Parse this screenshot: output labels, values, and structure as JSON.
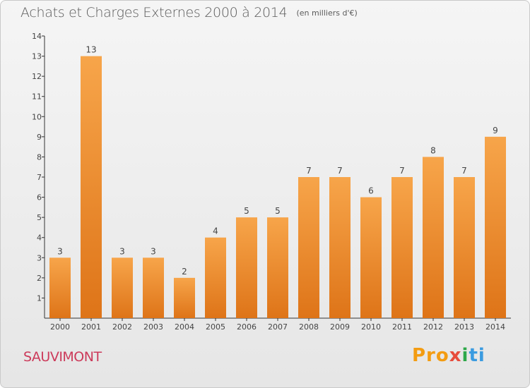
{
  "header": {
    "title": "Achats et Charges Externes 2000 à 2014",
    "unit_note": "(en milliers d'€)"
  },
  "footer": {
    "commune": "SAUVIMONT",
    "logo_parts": [
      "Pro",
      "x",
      "i",
      "ti"
    ]
  },
  "colors": {
    "bar_top": "#f7a54a",
    "bar_bottom": "#de7418",
    "title": "#5a5a5a",
    "commune": "#cc3a5a"
  },
  "chart_data": {
    "type": "bar",
    "title": "Achats et Charges Externes 2000 à 2014",
    "subtitle": "(en milliers d'€)",
    "xlabel": "",
    "ylabel": "",
    "categories": [
      "2000",
      "2001",
      "2002",
      "2003",
      "2004",
      "2005",
      "2006",
      "2007",
      "2008",
      "2009",
      "2010",
      "2011",
      "2012",
      "2013",
      "2014"
    ],
    "values": [
      3,
      13,
      3,
      3,
      2,
      4,
      5,
      5,
      7,
      7,
      6,
      7,
      8,
      7,
      9
    ],
    "data_labels": [
      "3",
      "13",
      "3",
      "3",
      "2",
      "4",
      "5",
      "5",
      "7",
      "7",
      "6",
      "7",
      "8",
      "7",
      "9"
    ],
    "y_ticks": [
      "1",
      "2",
      "3",
      "4",
      "5",
      "6",
      "7",
      "8",
      "9",
      "10",
      "11",
      "12",
      "13",
      "14"
    ],
    "ylim": [
      0,
      14
    ],
    "grid": false,
    "legend": "none"
  }
}
